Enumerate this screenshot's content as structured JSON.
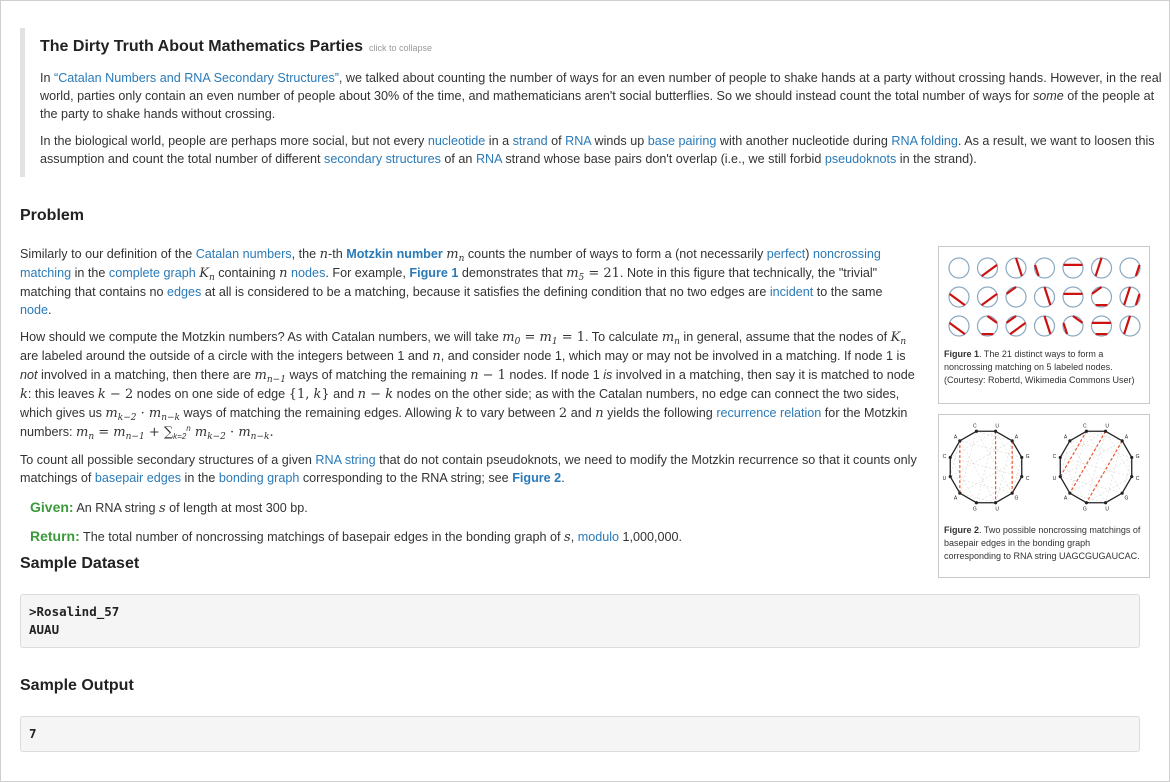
{
  "intro": {
    "title": "The Dirty Truth About Mathematics Parties",
    "collapse": "click to collapse",
    "p1_a": "In ",
    "p1_link": "“Catalan Numbers and RNA Secondary Structures”",
    "p1_b": ", we talked about counting the number of ways for an even number of people to shake hands at a party without crossing hands. However, in the real world, parties only contain an even number of people about 30% of the time, and mathematicians aren't social butterflies. So we should instead count the total number of ways for ",
    "p1_em": "some",
    "p1_c": " of the people at the party to shake hands without crossing.",
    "p2_a": "In the biological world, people are perhaps more social, but not every ",
    "p2_l1": "nucleotide",
    "p2_b": " in a ",
    "p2_l2": "strand",
    "p2_c": " of ",
    "p2_l3": "RNA",
    "p2_d": " winds up ",
    "p2_l4": "base pairing",
    "p2_e": " with another nucleotide during ",
    "p2_l5": "RNA folding",
    "p2_f": ". As a result, we want to loosen this assumption and count the total number of different ",
    "p2_l6": "secondary structures",
    "p2_g": " of an ",
    "p2_l7": "RNA",
    "p2_h": " strand whose base pairs don't overlap (i.e., we still forbid ",
    "p2_l8": "pseudoknots",
    "p2_i": " in the strand)."
  },
  "problem": {
    "heading": "Problem",
    "p1": {
      "t1": "Similarly to our definition of the ",
      "l_catalan": "Catalan numbers",
      "t2": ", the ",
      "t3": "-th ",
      "l_motzkin": "Motzkin number",
      "t4": " counts the number of ways to form a (not necessarily ",
      "l_perfect": "perfect",
      "t5": ") ",
      "l_noncross": "noncrossing matching",
      "t6": " in the ",
      "l_complete": "complete graph",
      "t7": " containing ",
      "l_nodes": "nodes",
      "t8": ". For example, ",
      "l_fig1": "Figure 1",
      "t9": " demonstrates that ",
      "t10": ". Note in this figure that technically, the \"trivial\" matching that contains no ",
      "l_edges": "edges",
      "t11": " at all is considered to be a matching, because it satisfies the defining condition that no two edges are ",
      "l_incident": "incident",
      "t12": " to the same ",
      "l_node": "node",
      "t13": "."
    },
    "p2": {
      "t1": "How should we compute the Motzkin numbers? As with Catalan numbers, we will take ",
      "t2": ". To calculate ",
      "t3": " in general, assume that the nodes of ",
      "t4": " are labeled around the outside of a circle with the integers between 1 and ",
      "t5": ", and consider node 1, which may or may not be involved in a matching. If node 1 is ",
      "em_not": "not",
      "t6": " involved in a matching, then there are ",
      "t7": " ways of matching the remaining ",
      "t8": " nodes. If node 1 ",
      "em_is": "is",
      "t9": " involved in a matching, then say it is matched to node ",
      "t10": ": this leaves ",
      "t11": " nodes on one side of edge ",
      "t12": " and ",
      "t13": " nodes on the other side; as with the Catalan numbers, no edge can connect the two sides, which gives us ",
      "t14": " ways of matching the remaining edges. Allowing ",
      "t15": " to vary between ",
      "t16": " and ",
      "t17": " yields the following ",
      "l_recurrence": "recurrence relation",
      "t18": " for the Motzkin numbers: "
    },
    "p3": {
      "t1": "To count all possible secondary structures of a given ",
      "l_rna": "RNA string",
      "t2": " that do not contain pseudoknots, we need to modify the Motzkin recurrence so that it counts only matchings of ",
      "l_basepair": "basepair edges",
      "t3": " in the ",
      "l_bonding": "bonding graph",
      "t4": " corresponding to the RNA string; see ",
      "l_fig2": "Figure 2",
      "t5": "."
    },
    "given_label": "Given:",
    "given_a": " An RNA string ",
    "given_b": " of length at most 300 bp.",
    "return_label": "Return:",
    "return_a": " The total number of noncrossing matchings of basepair edges in the bonding graph of ",
    "return_b": ", ",
    "return_link": "modulo",
    "return_c": " 1,000,000."
  },
  "figure1": {
    "label": "Figure 1",
    "caption": ". The 21 distinct ways to form a noncrossing matching on 5 labeled nodes. (Courtesy: Robertd, Wikimedia Commons User)"
  },
  "figure2": {
    "label": "Figure 2",
    "caption": ". Two possible noncrossing matchings of basepair edges in the bonding graph corresponding to RNA string UAGCGUGAUCAC.",
    "node_labels": [
      "U",
      "A",
      "G",
      "C",
      "G",
      "U",
      "G",
      "A",
      "U",
      "C",
      "A",
      "C"
    ]
  },
  "sample_dataset": {
    "heading": "Sample Dataset",
    "line1": ">Rosalind_57",
    "line2": "AUAU"
  },
  "sample_output": {
    "heading": "Sample Output",
    "value": "7"
  },
  "colors": {
    "link": "#2a7ab8",
    "green": "#3c9a3c",
    "edge_red": "#cc1111",
    "dashed": "#e8572d"
  }
}
